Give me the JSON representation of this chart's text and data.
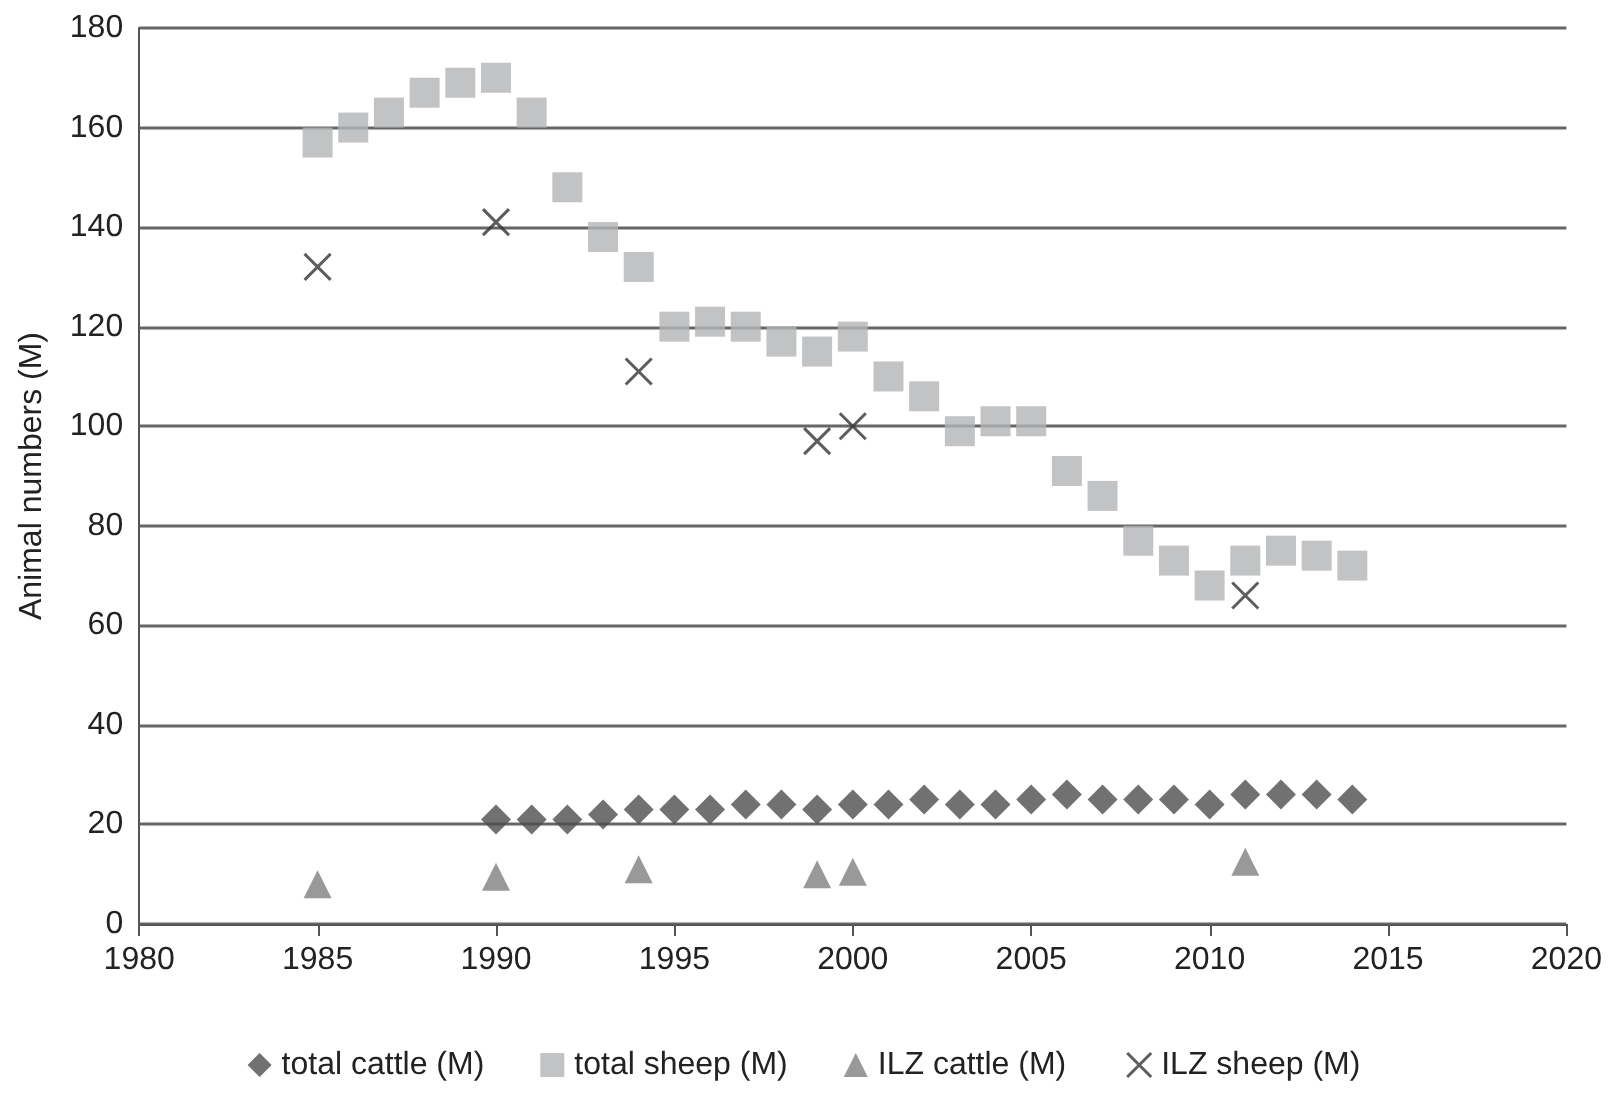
{
  "chart_data": {
    "type": "scatter",
    "ylabel": "Animal numbers (M)",
    "xlim": [
      1980,
      2020
    ],
    "xticks": [
      1980,
      1985,
      1990,
      1995,
      2000,
      2005,
      2010,
      2015,
      2020
    ],
    "ylim": [
      0,
      180
    ],
    "yticks": [
      0,
      20,
      40,
      60,
      80,
      100,
      120,
      140,
      160,
      180
    ],
    "grid": "y",
    "legend": "bottom",
    "series": [
      {
        "name": "total cattle (M)",
        "color": "#4d4d4f",
        "marker": "diamond",
        "x": [
          1990,
          1991,
          1992,
          1993,
          1994,
          1995,
          1996,
          1997,
          1998,
          1999,
          2000,
          2001,
          2002,
          2003,
          2004,
          2005,
          2006,
          2007,
          2008,
          2009,
          2010,
          2011,
          2012,
          2013,
          2014
        ],
        "values": [
          21,
          21,
          21,
          22,
          23,
          23,
          23,
          24,
          24,
          23,
          24,
          24,
          25,
          24,
          24,
          25,
          26,
          25,
          25,
          25,
          24,
          26,
          26,
          26,
          25
        ]
      },
      {
        "name": "total sheep (M)",
        "color": "#b3b4b6",
        "marker": "square",
        "x": [
          1985,
          1986,
          1987,
          1988,
          1989,
          1990,
          1991,
          1992,
          1993,
          1994,
          1995,
          1996,
          1997,
          1998,
          1999,
          2000,
          2001,
          2002,
          2003,
          2004,
          2005,
          2006,
          2007,
          2008,
          2009,
          2010,
          2011,
          2012,
          2013,
          2014
        ],
        "values": [
          157,
          160,
          163,
          167,
          169,
          170,
          163,
          148,
          138,
          132,
          120,
          121,
          120,
          117,
          115,
          118,
          110,
          106,
          99,
          101,
          101,
          91,
          86,
          77,
          73,
          68,
          73,
          75,
          74,
          72
        ]
      },
      {
        "name": "ILZ cattle (M)",
        "color": "#7f7f81",
        "marker": "triangle",
        "x": [
          1985,
          1990,
          1994,
          1999,
          2000,
          2011
        ],
        "values": [
          8,
          9.5,
          11,
          10,
          10.5,
          12.5
        ]
      },
      {
        "name": "ILZ sheep (M)",
        "color": "#333333",
        "marker": "cross",
        "x": [
          1985,
          1990,
          1994,
          1999,
          2000,
          2011
        ],
        "values": [
          132,
          141,
          111,
          97,
          100,
          66
        ]
      }
    ]
  }
}
